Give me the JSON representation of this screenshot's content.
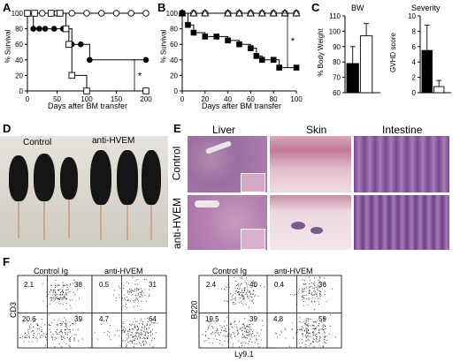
{
  "panels": {
    "A": {
      "letter": "A",
      "ylabel": "% Survival",
      "xlabel": "Days after BM transfer",
      "significance": "*",
      "yticks": [
        "0",
        "20",
        "40",
        "60",
        "80",
        "100"
      ],
      "xticks": [
        "0",
        "50",
        "100",
        "150",
        "200"
      ]
    },
    "B": {
      "letter": "B",
      "ylabel": "% Survival",
      "xlabel": "Days after BM transfer",
      "significance": "*",
      "yticks": [
        "0",
        "20",
        "40",
        "60",
        "80",
        "100"
      ],
      "xticks": [
        "0",
        "20",
        "40",
        "60",
        "80",
        "100"
      ]
    },
    "C": {
      "letter": "C",
      "bw_title": "BW",
      "bw_ylabel": "% Body Weight",
      "bw_yticks": [
        "60",
        "70",
        "80",
        "90",
        "100",
        "110"
      ],
      "sev_title": "Severity",
      "sev_ylabel": "GVHD score",
      "sev_yticks": [
        "0",
        "2",
        "4",
        "6",
        "8",
        "10"
      ]
    },
    "D": {
      "letter": "D",
      "label_control": "Control",
      "label_treated": "anti-HVEM"
    },
    "E": {
      "letter": "E",
      "col_liver": "Liver",
      "col_skin": "Skin",
      "col_intestine": "Intestine",
      "row_control": "Control",
      "row_treated": "anti-HVEM"
    },
    "F": {
      "letter": "F",
      "plots": [
        {
          "title": "Control Ig",
          "ylabel": "CD3",
          "q": [
            "2.1",
            "38",
            "20.6",
            "39"
          ]
        },
        {
          "title": "anti-HVEM",
          "ylabel": "",
          "q": [
            "0.5",
            "31",
            "4.7",
            "64"
          ]
        },
        {
          "title": "Control Ig",
          "ylabel": "B220",
          "q": [
            "2.4",
            "40",
            "19.5",
            "39"
          ]
        },
        {
          "title": "anti-HVEM",
          "ylabel": "",
          "q": [
            "0.4",
            "36",
            "4.8",
            "59"
          ]
        }
      ],
      "xlabel": "Ly9.1"
    }
  },
  "chart_data": [
    {
      "panel": "A",
      "type": "line",
      "xlim": [
        0,
        200
      ],
      "ylim": [
        0,
        100
      ],
      "xticks": [
        0,
        50,
        100,
        150,
        200
      ],
      "yticks": [
        0,
        20,
        40,
        60,
        80,
        100
      ],
      "series": [
        {
          "marker": "open-circle",
          "x": [
            0,
            25,
            50,
            75,
            100,
            125,
            150,
            175,
            200
          ],
          "y": [
            100,
            100,
            100,
            100,
            100,
            100,
            100,
            100,
            100
          ]
        },
        {
          "marker": "filled-circle",
          "x": [
            0,
            10,
            20,
            30,
            45,
            60,
            75,
            90,
            105,
            200
          ],
          "y": [
            100,
            80,
            80,
            80,
            80,
            80,
            60,
            60,
            40,
            40
          ]
        },
        {
          "marker": "open-square",
          "x": [
            0,
            12,
            40,
            55,
            65,
            70,
            75,
            100,
            200
          ],
          "y": [
            100,
            100,
            100,
            100,
            80,
            60,
            20,
            0,
            0
          ]
        }
      ]
    },
    {
      "panel": "B",
      "type": "line",
      "xlim": [
        0,
        100
      ],
      "ylim": [
        0,
        100
      ],
      "xticks": [
        0,
        20,
        40,
        60,
        80,
        100
      ],
      "yticks": [
        0,
        20,
        40,
        60,
        80,
        100
      ],
      "series": [
        {
          "marker": "open-circle",
          "x": [
            0,
            10,
            20,
            40,
            50,
            60,
            70,
            80,
            90,
            100
          ],
          "y": [
            100,
            100,
            100,
            100,
            100,
            100,
            100,
            100,
            100,
            100
          ]
        },
        {
          "marker": "open-triangle",
          "x": [
            0,
            10,
            20,
            40,
            50,
            60,
            70,
            80,
            90,
            100
          ],
          "y": [
            100,
            100,
            100,
            100,
            100,
            100,
            100,
            100,
            100,
            100
          ]
        },
        {
          "marker": "filled-square",
          "x": [
            0,
            5,
            10,
            20,
            30,
            40,
            50,
            60,
            65,
            70,
            80,
            85,
            100
          ],
          "y": [
            100,
            85,
            75,
            70,
            70,
            65,
            60,
            55,
            45,
            40,
            40,
            30,
            30
          ]
        }
      ]
    },
    {
      "panel": "C-BW",
      "type": "bar",
      "categories": [
        "filled",
        "open"
      ],
      "values": [
        79,
        97
      ],
      "errors": [
        11,
        8
      ],
      "colors": [
        "#000000",
        "#ffffff"
      ],
      "ylim": [
        60,
        110
      ],
      "yticks": [
        60,
        70,
        80,
        90,
        100,
        110
      ]
    },
    {
      "panel": "C-Severity",
      "type": "bar",
      "categories": [
        "filled",
        "open"
      ],
      "values": [
        5.5,
        0.8
      ],
      "errors": [
        3.3,
        0.8
      ],
      "colors": [
        "#000000",
        "#ffffff"
      ],
      "ylim": [
        0,
        10
      ],
      "yticks": [
        0,
        2,
        4,
        6,
        8,
        10
      ]
    }
  ]
}
